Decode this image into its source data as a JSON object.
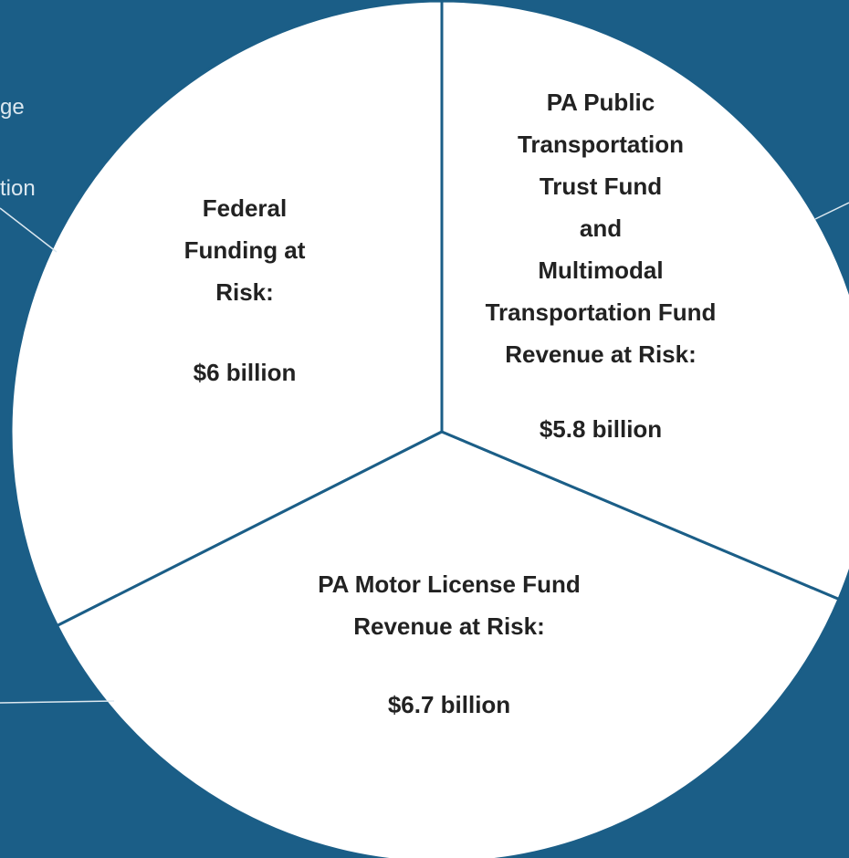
{
  "chart_data": {
    "type": "pie",
    "categories": [
      "Federal\nFunding at\nRisk:",
      "PA Motor License Fund\nRevenue at Risk:",
      "PA Public\nTransportation\nTrust Fund\nand\nMultimodal\nTransportation Fund\nRevenue at Risk:"
    ],
    "values": [
      6,
      6.7,
      5.8
    ],
    "value_labels": [
      "$6 billion",
      "$6.7 billion",
      "$5.8 billion"
    ],
    "colors": [
      "#ffffff",
      "#ffffff",
      "#ffffff"
    ],
    "annotations": [
      "ge",
      "tion"
    ]
  }
}
